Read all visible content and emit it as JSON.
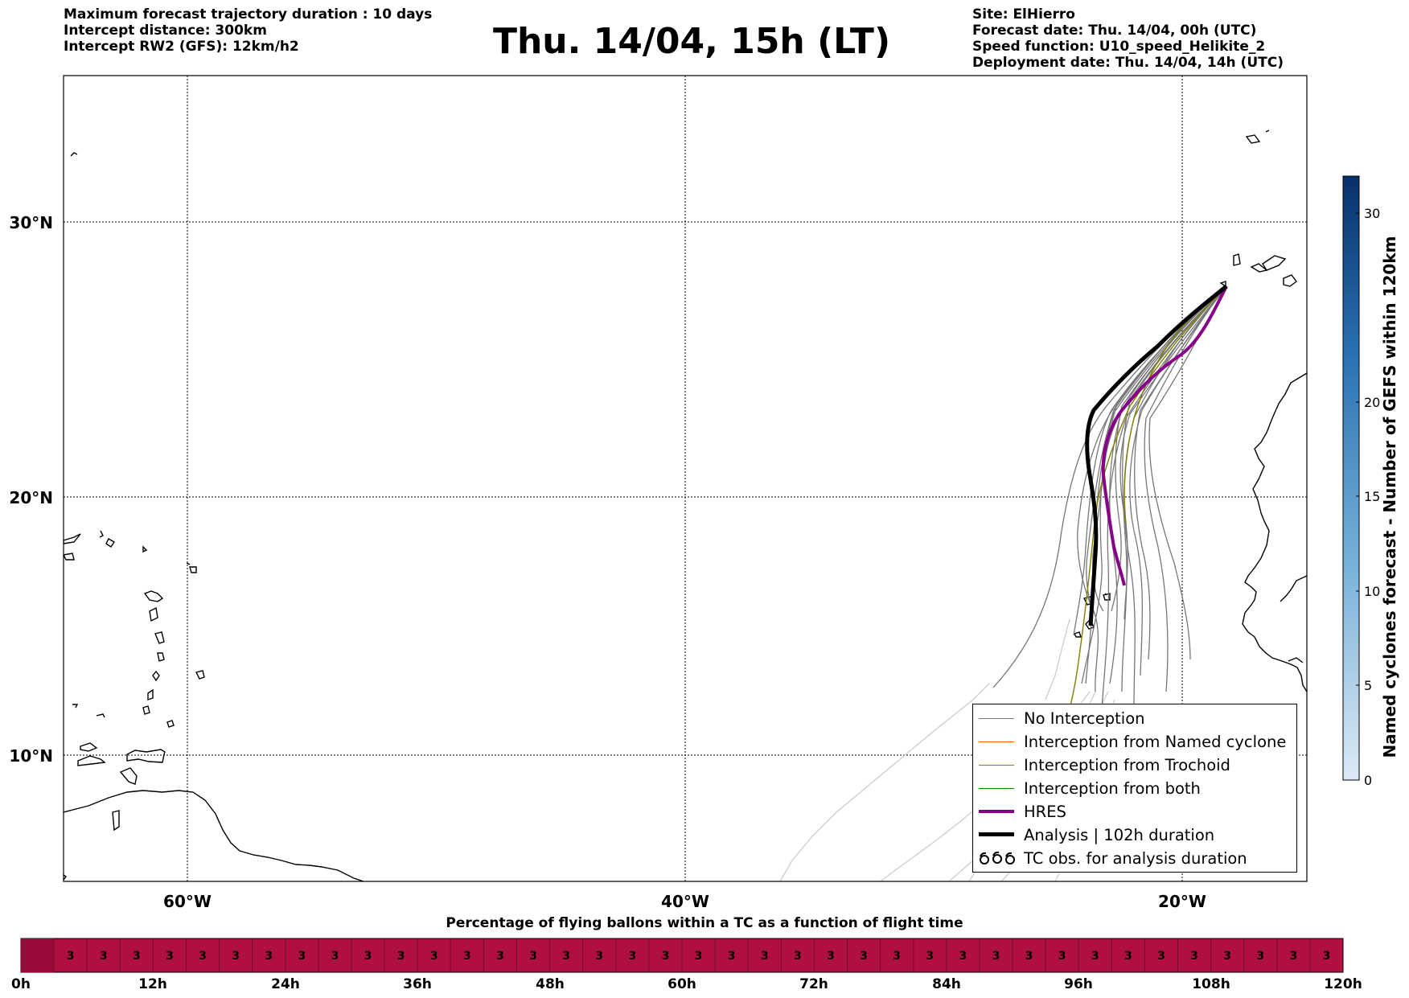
{
  "header": {
    "left_lines": [
      "Maximum forecast trajectory duration : 10 days",
      "Intercept distance: 300km",
      "Intercept RW2 (GFS):  12km/h2"
    ],
    "title": "Thu. 14/04, 15h (LT)",
    "right_lines": [
      "Site: ElHierro",
      "Forecast date: Thu. 14/04, 00h (UTC)",
      "Speed function: U10_speed_Helikite_2",
      "Deployment date: Thu. 14/04, 14h (UTC)"
    ]
  },
  "map": {
    "lon_ticks": [
      "60°W",
      "40°W",
      "20°W"
    ],
    "lat_ticks": [
      "30°N",
      "20°N",
      "10°N"
    ],
    "colors": {
      "no_interception": "#777777",
      "named_cyclone": "#ff5500",
      "trochoid": "#808000",
      "both": "#008000",
      "hres": "#880088",
      "analysis": "#000000",
      "faded": "#cccccc"
    }
  },
  "legend": {
    "items": [
      {
        "label": "No Interception",
        "icon": "thin-gray-line"
      },
      {
        "label": "Interception from Named cyclone",
        "icon": "thin-orange-line"
      },
      {
        "label": "Interception from Trochoid",
        "icon": "thin-olive-line"
      },
      {
        "label": "Interception from both",
        "icon": "thin-green-line"
      },
      {
        "label": "HRES",
        "icon": "thick-purple-line"
      },
      {
        "label": "Analysis | 102h duration",
        "icon": "thick-black-line"
      },
      {
        "label": "TC obs. for analysis duration",
        "icon": "cyclone-symbols"
      }
    ]
  },
  "colorbar": {
    "title": "Named cyclones forecast - Number of GEFS within 120km",
    "ticks": [
      "0",
      "5",
      "10",
      "15",
      "20",
      "30"
    ],
    "colors": [
      "#dde9f5",
      "#08306b"
    ]
  },
  "timeline": {
    "title": "Percentage of flying ballons within a TC as a function of flight time",
    "tick_labels": [
      "0h",
      "12h",
      "24h",
      "36h",
      "48h",
      "60h",
      "72h",
      "84h",
      "96h",
      "108h",
      "120h"
    ],
    "cell_value": "3",
    "cell_count": 39,
    "bar_color": "#b0103f",
    "first_cell_color": "#9a0a38"
  }
}
